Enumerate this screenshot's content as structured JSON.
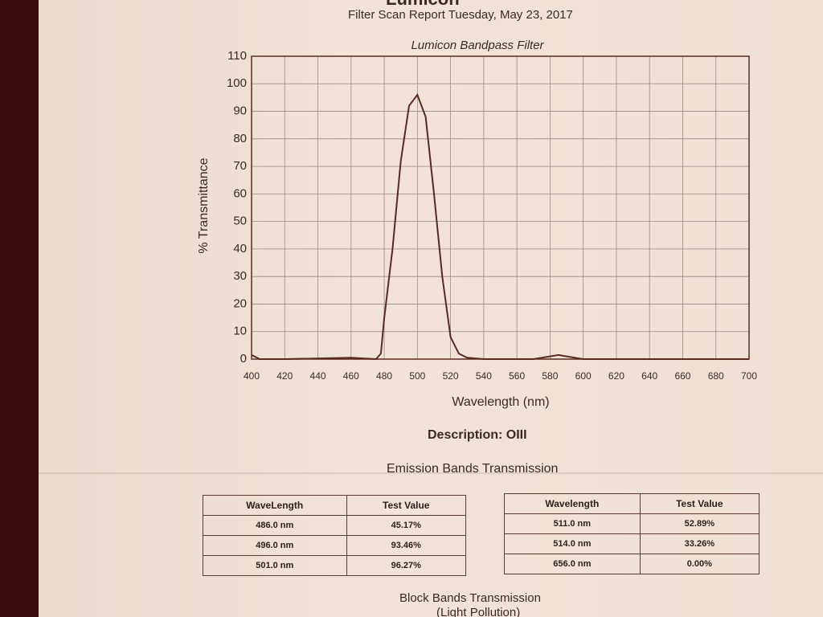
{
  "header": {
    "brand": "Lumicon",
    "subtitle": "Filter Scan Report   Tuesday, May 23, 2017"
  },
  "chart_data": {
    "type": "line",
    "title": "Lumicon Bandpass Filter",
    "x_label": "Wavelength (nm)",
    "y_label": "% Transmittance",
    "x": [
      400,
      405,
      420,
      460,
      475,
      478,
      480,
      485,
      490,
      495,
      500,
      505,
      510,
      515,
      520,
      525,
      530,
      540,
      570,
      580,
      585,
      590,
      600,
      650,
      700
    ],
    "values": [
      1.5,
      0,
      0,
      0.5,
      0,
      2,
      15,
      40,
      72,
      92,
      96,
      88,
      60,
      30,
      8,
      2,
      0.5,
      0,
      0,
      1,
      1.5,
      1,
      0,
      0,
      0
    ],
    "color": "#5a2a22",
    "xlim": [
      400,
      700
    ],
    "xticks": [
      400,
      420,
      440,
      460,
      480,
      500,
      520,
      540,
      560,
      580,
      600,
      620,
      640,
      660,
      680,
      700
    ],
    "ylim": [
      0,
      110
    ],
    "yticks": [
      0,
      10,
      20,
      30,
      40,
      50,
      60,
      70,
      80,
      90,
      100,
      110
    ],
    "grid": true
  },
  "description": "Description: OIII",
  "emission_title": "Emission Bands Transmission",
  "tables": [
    {
      "header": [
        "WaveLength",
        "Test Value"
      ],
      "rows": [
        [
          "486.0 nm",
          "45.17%"
        ],
        [
          "496.0 nm",
          "93.46%"
        ],
        [
          "501.0 nm",
          "96.27%"
        ]
      ]
    },
    {
      "header": [
        "Wavelength",
        "Test Value"
      ],
      "rows": [
        [
          "511.0 nm",
          "52.89%"
        ],
        [
          "514.0 nm",
          "33.26%"
        ],
        [
          "656.0 nm",
          "0.00%"
        ]
      ]
    }
  ],
  "block_title": "Block Bands Transmission",
  "block_subtitle": "(Light Pollution)"
}
